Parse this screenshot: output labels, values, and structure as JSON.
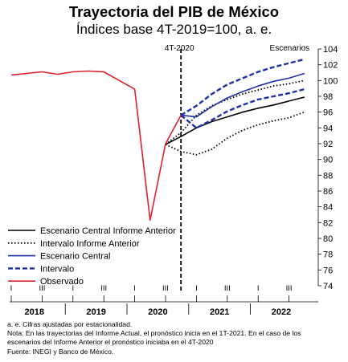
{
  "header": {
    "title": "Trayectoria del PIB de México",
    "subtitle": "Índices base 4T-2019=100, a. e."
  },
  "notes": [
    "a. e. Cifras ajustadas por estacionalidad.",
    "Nota: En las trayectorias del Informe Actual, el pronóstico inicia en el 1T-2021. En el caso de los",
    "escenarios del Informe Anterior el pronóstico iniciaba en el 4T-2020",
    "Fuente: INEGI y Banco de México."
  ],
  "chart_data": {
    "type": "line",
    "title": "Trayectoria del PIB de México",
    "subtitle": "Índices base 4T-2019=100, a. e.",
    "x_quarters": [
      "2018-I",
      "2018-II",
      "2018-III",
      "2018-IV",
      "2019-I",
      "2019-II",
      "2019-III",
      "2019-IV",
      "2020-I",
      "2020-II",
      "2020-III",
      "2020-IV",
      "2021-I",
      "2021-II",
      "2021-III",
      "2021-IV",
      "2022-I",
      "2022-II",
      "2022-III",
      "2022-IV"
    ],
    "x_tick_labels": [
      "I",
      "III",
      "I",
      "III",
      "I",
      "III",
      "I",
      "III",
      "I",
      "III"
    ],
    "x_tick_quarters": [
      "2018-I",
      "2018-III",
      "2019-I",
      "2019-III",
      "2020-I",
      "2020-III",
      "2021-I",
      "2021-III",
      "2022-I",
      "2022-III"
    ],
    "year_labels": [
      "2018",
      "2019",
      "2020",
      "2021",
      "2022"
    ],
    "ylim": [
      74,
      104
    ],
    "y_ticks": [
      74,
      76,
      78,
      80,
      82,
      84,
      86,
      88,
      90,
      92,
      94,
      96,
      98,
      100,
      102,
      104
    ],
    "y_axis_position": "right",
    "vline": {
      "label": "4T-2020",
      "at": "2020-IV"
    },
    "scenario_label": "Escenarios",
    "legend": {
      "position": "bottom-left"
    },
    "series": [
      {
        "name": "Escenario Central Informe Anterior",
        "style": "solid",
        "color": "#000000",
        "x": [
          "2020-III",
          "2020-IV",
          "2021-I",
          "2021-II",
          "2021-III",
          "2021-IV",
          "2022-I",
          "2022-II",
          "2022-III",
          "2022-IV"
        ],
        "values": [
          91.9,
          92.9,
          94.0,
          94.8,
          95.4,
          96.0,
          96.5,
          96.9,
          97.4,
          97.9
        ]
      },
      {
        "name": "Intervalo Informe Anterior",
        "style": "dotted",
        "color": "#000000",
        "x": [
          "2020-III",
          "2020-IV",
          "2021-I",
          "2021-II",
          "2021-III",
          "2021-IV",
          "2022-I",
          "2022-II",
          "2022-III",
          "2022-IV"
        ],
        "values": [
          91.9,
          93.4,
          95.6,
          96.8,
          97.6,
          98.3,
          98.8,
          99.3,
          99.6,
          100.0
        ]
      },
      {
        "name": "Intervalo Informe Anterior (inferior)",
        "style": "dotted",
        "color": "#000000",
        "legend": false,
        "x": [
          "2020-III",
          "2020-IV",
          "2021-I",
          "2021-II",
          "2021-III",
          "2021-IV",
          "2022-I",
          "2022-II",
          "2022-III",
          "2022-IV"
        ],
        "values": [
          91.9,
          91.0,
          90.6,
          91.3,
          92.7,
          93.7,
          94.4,
          94.9,
          95.3,
          96.0
        ]
      },
      {
        "name": "Escenario Central",
        "style": "solid",
        "color": "#1f2fa8",
        "x": [
          "2020-IV",
          "2021-I",
          "2021-II",
          "2021-III",
          "2021-IV",
          "2022-I",
          "2022-II",
          "2022-III",
          "2022-IV"
        ],
        "values": [
          95.6,
          95.4,
          96.7,
          97.8,
          98.6,
          99.3,
          99.9,
          100.3,
          100.9
        ]
      },
      {
        "name": "Intervalo",
        "style": "dashed",
        "color": "#1f2fa8",
        "x": [
          "2020-IV",
          "2021-I",
          "2021-II",
          "2021-III",
          "2021-IV",
          "2022-I",
          "2022-II",
          "2022-III",
          "2022-IV"
        ],
        "values": [
          95.6,
          96.8,
          98.3,
          99.5,
          100.3,
          101.1,
          101.7,
          102.2,
          102.7
        ]
      },
      {
        "name": "Intervalo (inferior)",
        "style": "dashed",
        "color": "#1f2fa8",
        "legend": false,
        "x": [
          "2020-IV",
          "2021-I",
          "2021-II",
          "2021-III",
          "2021-IV",
          "2022-I",
          "2022-II",
          "2022-III",
          "2022-IV"
        ],
        "values": [
          95.6,
          94.0,
          95.0,
          96.1,
          96.9,
          97.6,
          98.0,
          98.4,
          98.9
        ]
      },
      {
        "name": "Observado",
        "style": "solid",
        "color": "#e0202a",
        "x": [
          "2018-I",
          "2018-II",
          "2018-III",
          "2018-IV",
          "2019-I",
          "2019-II",
          "2019-III",
          "2019-IV",
          "2020-I",
          "2020-II",
          "2020-III",
          "2020-IV"
        ],
        "values": [
          100.7,
          100.9,
          101.1,
          100.8,
          101.1,
          101.2,
          101.1,
          100.0,
          98.9,
          82.3,
          92.0,
          95.6
        ]
      }
    ]
  }
}
